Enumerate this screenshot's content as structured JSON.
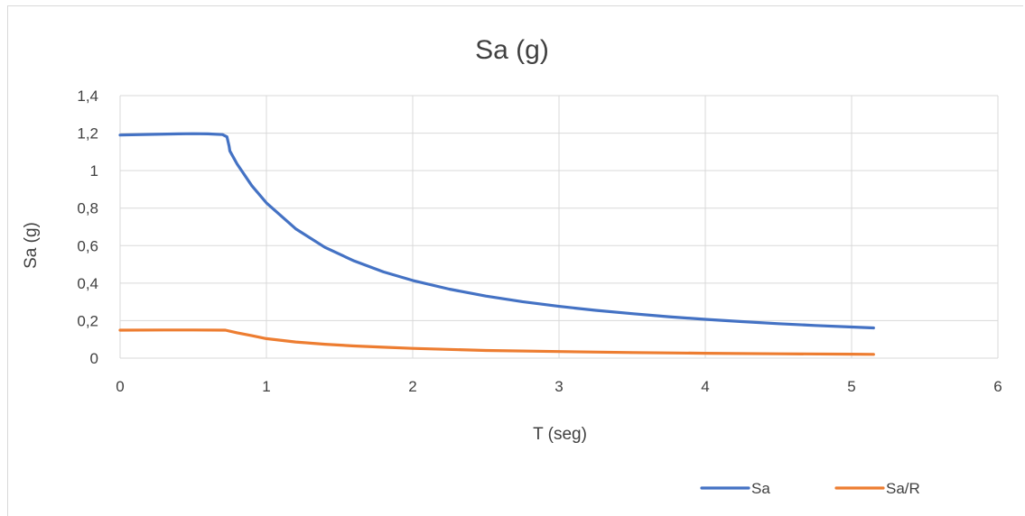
{
  "chart_data": {
    "type": "line",
    "title": "Sa (g)",
    "xlabel": "T (seg)",
    "ylabel": "Sa (g)",
    "xlim": [
      0,
      6
    ],
    "ylim": [
      0,
      1.4
    ],
    "x_ticks": [
      "0",
      "1",
      "2",
      "3",
      "4",
      "5",
      "6"
    ],
    "y_ticks": [
      "0",
      "0,2",
      "0,4",
      "0,6",
      "0,8",
      "1",
      "1,2",
      "1,4"
    ],
    "grid": true,
    "legend_position": "bottom-right",
    "series": [
      {
        "name": "Sa",
        "color": "#4472c4",
        "x": [
          0,
          0.2,
          0.4,
          0.5,
          0.6,
          0.7,
          0.73,
          0.745,
          0.75,
          0.8,
          0.9,
          1.0,
          1.2,
          1.4,
          1.6,
          1.8,
          2.0,
          2.25,
          2.5,
          2.75,
          3.0,
          3.25,
          3.5,
          3.75,
          4.0,
          4.25,
          4.5,
          4.75,
          5.0,
          5.15
        ],
        "y": [
          1.19,
          1.193,
          1.196,
          1.197,
          1.196,
          1.192,
          1.18,
          1.13,
          1.105,
          1.035,
          0.92,
          0.828,
          0.69,
          0.591,
          0.518,
          0.46,
          0.414,
          0.368,
          0.331,
          0.301,
          0.276,
          0.255,
          0.237,
          0.221,
          0.207,
          0.195,
          0.184,
          0.174,
          0.166,
          0.161
        ]
      },
      {
        "name": "Sa/R",
        "color": "#ed7d31",
        "x": [
          0,
          0.3,
          0.5,
          0.72,
          0.8,
          0.9,
          1.0,
          1.2,
          1.4,
          1.6,
          1.8,
          2.0,
          2.5,
          3.0,
          3.5,
          4.0,
          4.5,
          5.0,
          5.15
        ],
        "y": [
          0.149,
          0.15,
          0.15,
          0.149,
          0.135,
          0.12,
          0.104,
          0.086,
          0.074,
          0.065,
          0.058,
          0.052,
          0.041,
          0.035,
          0.03,
          0.026,
          0.023,
          0.021,
          0.02
        ]
      }
    ]
  }
}
